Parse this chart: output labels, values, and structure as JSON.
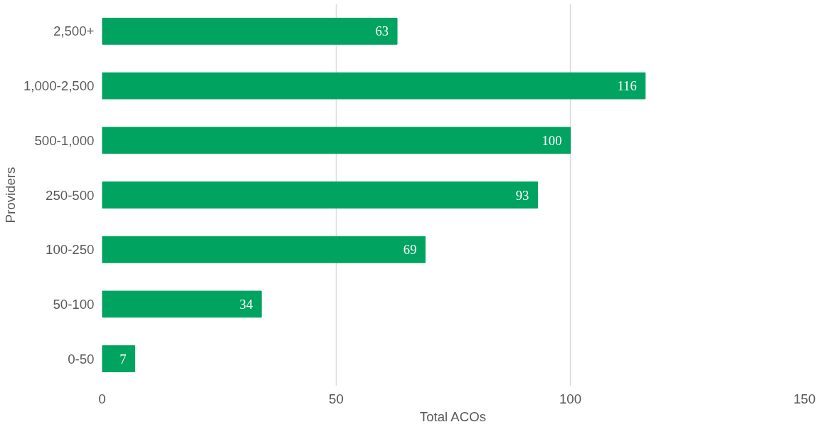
{
  "chart_data": {
    "type": "bar",
    "orientation": "horizontal",
    "xlabel": "Total ACOs",
    "ylabel": "Providers",
    "categories": [
      "2,500+",
      "1,000-2,500",
      "500-1,000",
      "250-500",
      "100-250",
      "50-100",
      "0-50"
    ],
    "values": [
      63,
      116,
      100,
      93,
      69,
      34,
      7
    ],
    "color": "#00a35f",
    "xlim": [
      0,
      150
    ],
    "xticks": [
      0,
      50,
      100,
      150
    ],
    "grid": "x",
    "data_labels": true
  }
}
